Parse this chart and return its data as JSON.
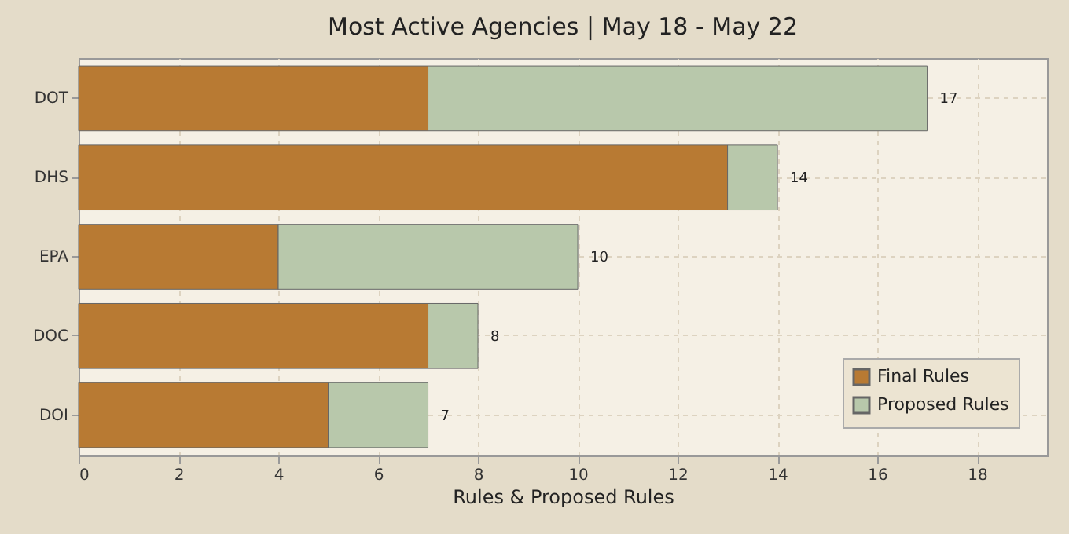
{
  "chart_data": {
    "type": "bar",
    "title": "Most Active Agencies | May 18 - May 22",
    "xlabel": "Rules & Proposed Rules",
    "orientation": "horizontal",
    "stacked": true,
    "categories": [
      "DOT",
      "DHS",
      "EPA",
      "DOC",
      "DOI"
    ],
    "series": [
      {
        "name": "Final Rules",
        "color": "#b87a33",
        "values": [
          7,
          13,
          4,
          7,
          5
        ]
      },
      {
        "name": "Proposed Rules",
        "color": "#b8c8ab",
        "values": [
          10,
          1,
          6,
          1,
          2
        ]
      }
    ],
    "totals": [
      "17",
      "14",
      "10",
      "8",
      "7"
    ],
    "xlim": [
      0,
      19.4
    ],
    "xticks": [
      0,
      2,
      4,
      6,
      8,
      10,
      12,
      14,
      16,
      18
    ],
    "grid": true,
    "legend": "bottom right"
  }
}
